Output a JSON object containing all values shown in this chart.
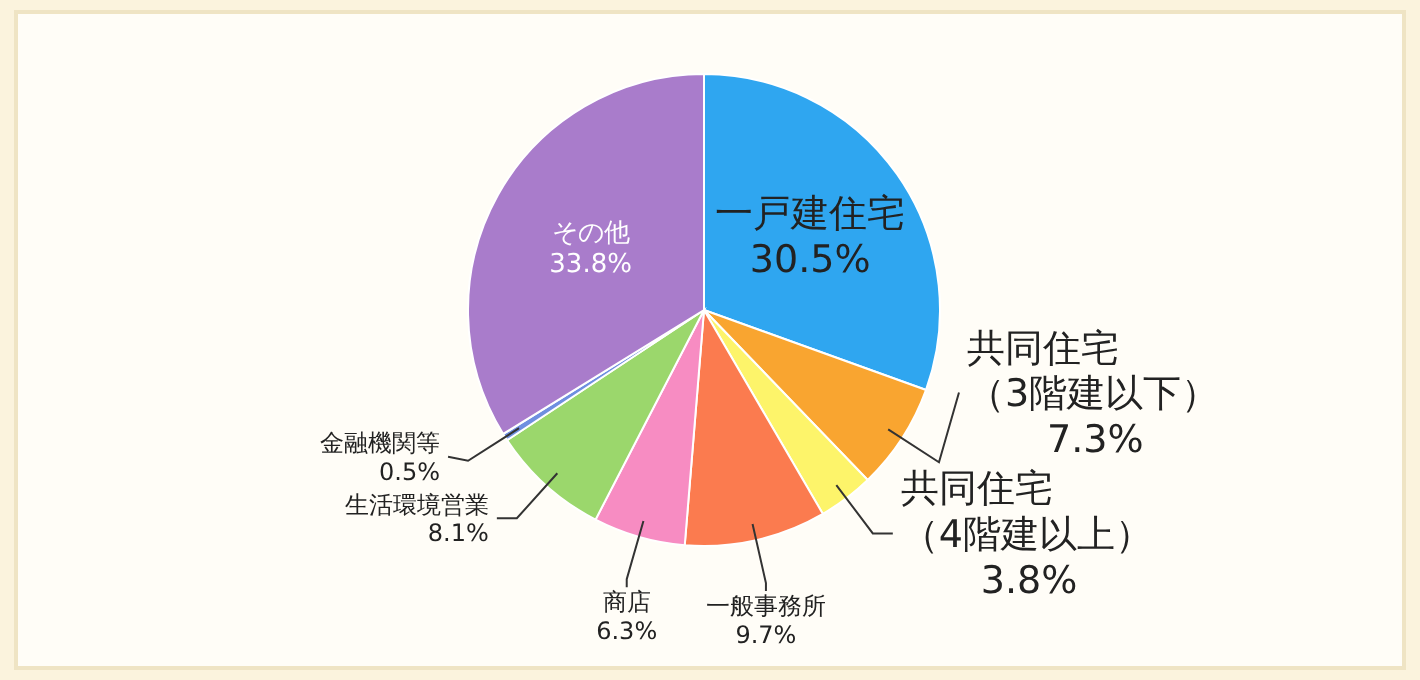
{
  "chart_data": {
    "type": "pie",
    "categories": [
      "一戸建住宅",
      "共同住宅（3階建以下）",
      "共同住宅（4階建以上）",
      "一般事務所",
      "商店",
      "生活環境営業",
      "金融機関等",
      "その他"
    ],
    "values": [
      30.5,
      7.3,
      3.8,
      9.7,
      6.3,
      8.1,
      0.5,
      33.8
    ],
    "value_labels": [
      "30.5%",
      "7.3%",
      "3.8%",
      "9.7%",
      "6.3%",
      "8.1%",
      "0.5%",
      "33.8%"
    ],
    "colors": [
      "#2fa6f0",
      "#f9a530",
      "#fdf46a",
      "#fb7b4f",
      "#f78cc2",
      "#9bd76c",
      "#6f8fe0",
      "#a97ccb"
    ]
  }
}
